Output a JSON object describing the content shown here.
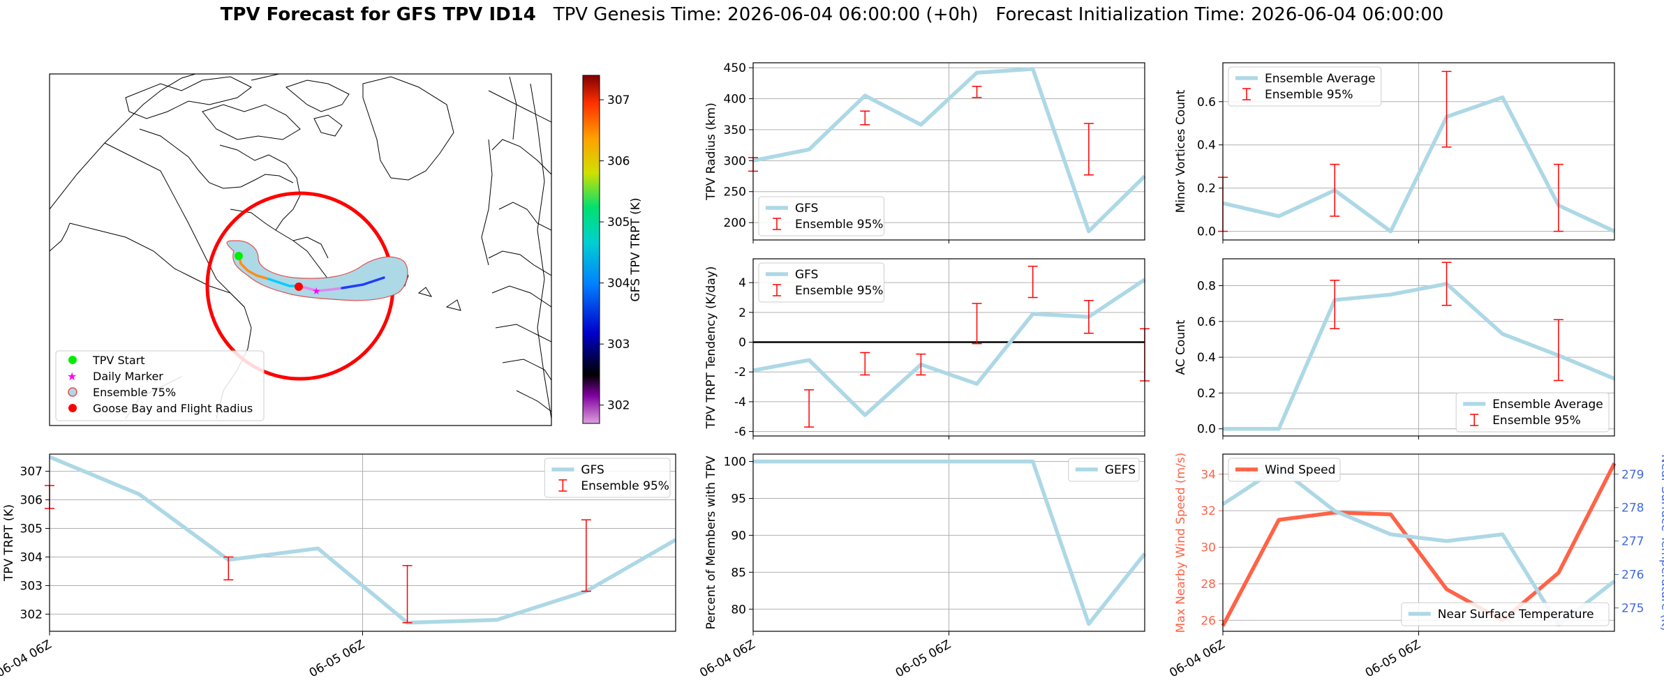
{
  "title": {
    "bold": "TPV Forecast for GFS TPV ID14",
    "genesis": "TPV Genesis Time: 2026-06-04 06:00:00 (+0h)",
    "init": "Forecast Initialization Time: 2026-06-04 06:00:00"
  },
  "colors": {
    "gfs_line": "#add8e6",
    "errorbar": "#ff0000",
    "wind": "#ff6347",
    "temp_axis": "#4169e1",
    "goose_circle": "#ff0000",
    "ensemble_fill": "#add8e6"
  },
  "map": {
    "colorbar_label": "GFS TPV TRPT (K)",
    "colorbar_ticks": [
      "307",
      "306",
      "305",
      "304",
      "303",
      "302"
    ],
    "colorbar_range": [
      301.7,
      307.4
    ],
    "legend": [
      {
        "label": "TPV Start",
        "icon": "green-dot-icon"
      },
      {
        "label": "Daily Marker",
        "icon": "magenta-star-icon"
      },
      {
        "label": "Ensemble 75%",
        "icon": "ensemble-patch-icon"
      },
      {
        "label": "Goose Bay and Flight Radius",
        "icon": "red-dot-icon"
      }
    ]
  },
  "chart_data": [
    {
      "id": "tpv-radius",
      "type": "line",
      "ylabel": "TPV Radius (km)",
      "ylim": [
        172,
        458
      ],
      "yticks": [
        200,
        250,
        300,
        350,
        400,
        450
      ],
      "x": [
        0,
        1,
        2,
        3,
        4,
        5,
        6,
        7
      ],
      "series": [
        {
          "name": "GFS",
          "values": [
            300,
            318,
            405,
            358,
            442,
            448,
            186,
            275
          ]
        }
      ],
      "errorbars": [
        {
          "x": 0,
          "low": 283,
          "high": 305
        },
        {
          "x": 2,
          "low": 358,
          "high": 380
        },
        {
          "x": 4,
          "low": 402,
          "high": 420
        },
        {
          "x": 6,
          "low": 277,
          "high": 360
        }
      ],
      "legend": [
        "GFS",
        "Ensemble 95%"
      ],
      "legend_loc": "lower-left",
      "xticks": []
    },
    {
      "id": "minor-vortices",
      "type": "line",
      "ylabel": "Minor Vortices Count",
      "ylim": [
        -0.04,
        0.78
      ],
      "yticks": [
        "0.0",
        "0.2",
        "0.4",
        "0.6"
      ],
      "x": [
        0,
        1,
        2,
        3,
        4,
        5,
        6,
        7
      ],
      "series": [
        {
          "name": "Ensemble Average",
          "values": [
            0.13,
            0.07,
            0.19,
            0.0,
            0.53,
            0.62,
            0.12,
            0.0
          ]
        }
      ],
      "errorbars": [
        {
          "x": 0,
          "low": 0.0,
          "high": 0.25
        },
        {
          "x": 2,
          "low": 0.07,
          "high": 0.31
        },
        {
          "x": 4,
          "low": 0.39,
          "high": 0.74
        },
        {
          "x": 6,
          "low": 0.0,
          "high": 0.31
        }
      ],
      "legend": [
        "Ensemble Average",
        "Ensemble 95%"
      ],
      "legend_loc": "upper-left",
      "xticks": []
    },
    {
      "id": "trpt-tendency",
      "type": "line",
      "ylabel": "TPV TRPT Tendency (K/day)",
      "ylim": [
        -6.3,
        5.6
      ],
      "yticks": [
        4,
        2,
        0,
        -2,
        -4,
        -6
      ],
      "x": [
        0,
        1,
        2,
        3,
        4,
        5,
        6,
        7
      ],
      "series": [
        {
          "name": "GFS",
          "values": [
            -1.9,
            -1.2,
            -4.9,
            -1.5,
            -2.8,
            1.9,
            1.7,
            4.2
          ]
        }
      ],
      "errorbars": [
        {
          "x": 1,
          "low": -5.7,
          "high": -3.2
        },
        {
          "x": 2,
          "low": -2.2,
          "high": -0.7
        },
        {
          "x": 3,
          "low": -2.2,
          "high": -0.8
        },
        {
          "x": 4,
          "low": -0.1,
          "high": 2.6
        },
        {
          "x": 5,
          "low": 3.0,
          "high": 5.1
        },
        {
          "x": 6,
          "low": 0.6,
          "high": 2.8
        },
        {
          "x": 7,
          "low": -2.6,
          "high": 0.9
        }
      ],
      "zero_line": true,
      "legend": [
        "GFS",
        "Ensemble 95%"
      ],
      "legend_loc": "upper-left",
      "xticks": []
    },
    {
      "id": "ac-count",
      "type": "line",
      "ylabel": "AC Count",
      "ylim": [
        -0.04,
        0.95
      ],
      "yticks": [
        "0.0",
        "0.2",
        "0.4",
        "0.6",
        "0.8"
      ],
      "x": [
        0,
        1,
        2,
        3,
        4,
        5,
        6,
        7
      ],
      "series": [
        {
          "name": "Ensemble Average",
          "values": [
            0.0,
            0.0,
            0.72,
            0.75,
            0.81,
            0.53,
            0.41,
            0.28
          ]
        }
      ],
      "errorbars": [
        {
          "x": 2,
          "low": 0.56,
          "high": 0.83
        },
        {
          "x": 4,
          "low": 0.69,
          "high": 0.93
        },
        {
          "x": 6,
          "low": 0.27,
          "high": 0.61
        }
      ],
      "legend": [
        "Ensemble Average",
        "Ensemble 95%"
      ],
      "legend_loc": "lower-right",
      "xticks": []
    },
    {
      "id": "trpt",
      "type": "line",
      "ylabel": "TPV TRPT (K)",
      "ylim": [
        301.4,
        307.6
      ],
      "yticks": [
        302,
        303,
        304,
        305,
        306,
        307
      ],
      "x": [
        0,
        1,
        2,
        3,
        4,
        5,
        6,
        7
      ],
      "series": [
        {
          "name": "GFS",
          "values": [
            307.5,
            306.2,
            303.9,
            304.3,
            301.7,
            301.8,
            302.8,
            304.6
          ]
        }
      ],
      "errorbars": [
        {
          "x": 0,
          "low": 305.7,
          "high": 306.5
        },
        {
          "x": 2,
          "low": 303.2,
          "high": 304.0
        },
        {
          "x": 4,
          "low": 301.7,
          "high": 303.7
        },
        {
          "x": 6,
          "low": 302.8,
          "high": 305.3
        }
      ],
      "legend": [
        "GFS",
        "Ensemble 95%"
      ],
      "legend_loc": "upper-right",
      "xticks": [
        "06-04 06Z",
        "06-05 06Z"
      ]
    },
    {
      "id": "percent-members",
      "type": "line",
      "ylabel": "Percent of Members with TPV",
      "ylim": [
        77,
        101
      ],
      "yticks": [
        80,
        85,
        90,
        95,
        100
      ],
      "x": [
        0,
        1,
        2,
        3,
        4,
        5,
        6,
        7
      ],
      "series": [
        {
          "name": "GEFS",
          "values": [
            100,
            100,
            100,
            100,
            100,
            100,
            78,
            87.5
          ]
        }
      ],
      "errorbars": [],
      "legend": [
        "GEFS"
      ],
      "legend_loc": "upper-right",
      "xticks": [
        "06-04 06Z",
        "06-05 06Z"
      ]
    },
    {
      "id": "wind-temp",
      "type": "line",
      "ylabel": "Max Nearby Wind Speed (m/s)",
      "ylabel_right": "Near Surface Temperature (K)",
      "ylim": [
        25.4,
        35.1
      ],
      "ylim_right": [
        274.3,
        279.6
      ],
      "yticks": [
        26,
        28,
        30,
        32,
        34
      ],
      "yticks_right": [
        275,
        276,
        277,
        278,
        279
      ],
      "x": [
        0,
        1,
        2,
        3,
        4,
        5,
        6,
        7
      ],
      "series": [
        {
          "name": "Wind Speed",
          "values": [
            25.7,
            31.5,
            31.9,
            31.8,
            27.7,
            26.0,
            28.6,
            34.6
          ],
          "axis": "left"
        },
        {
          "name": "Near Surface Temperature",
          "values": [
            278.1,
            279.2,
            277.9,
            277.2,
            277.0,
            277.2,
            274.5,
            275.8
          ],
          "axis": "right"
        }
      ],
      "errorbars": [],
      "legend": [
        "Wind Speed",
        "Near Surface Temperature"
      ],
      "xticks": [
        "06-04 06Z",
        "06-05 06Z"
      ]
    }
  ]
}
